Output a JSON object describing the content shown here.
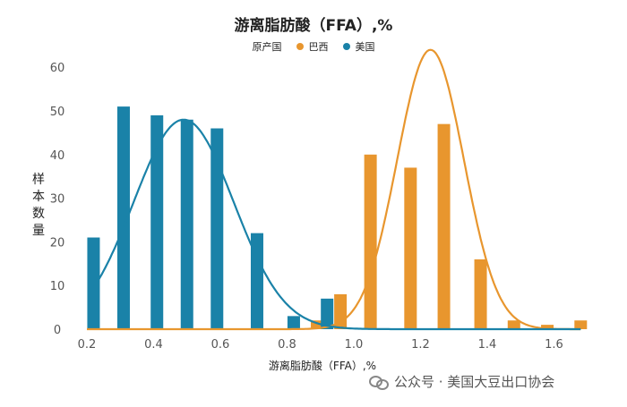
{
  "chart_data": {
    "type": "bar",
    "title": "游离脂肪酸（FFA）,%",
    "xlabel": "游离脂肪酸（FFA）,%",
    "ylabel": "样本数量",
    "legend_title": "原产国",
    "legend_position": "top-center",
    "xlim": [
      0.2,
      1.7
    ],
    "ylim": [
      0,
      65
    ],
    "x_ticks": [
      "0.2",
      "0.4",
      "0.6",
      "0.8",
      "1.0",
      "1.2",
      "1.4",
      "1.6"
    ],
    "y_ticks": [
      "0",
      "10",
      "20",
      "30",
      "40",
      "50",
      "60"
    ],
    "grid": false,
    "series": [
      {
        "name": "巴西",
        "color": "#E8962E",
        "bars": [
          {
            "x": 0.89,
            "y": 2
          },
          {
            "x": 0.96,
            "y": 8
          },
          {
            "x": 1.05,
            "y": 40
          },
          {
            "x": 1.17,
            "y": 37
          },
          {
            "x": 1.27,
            "y": 47
          },
          {
            "x": 1.38,
            "y": 16
          },
          {
            "x": 1.48,
            "y": 2
          },
          {
            "x": 1.58,
            "y": 1
          },
          {
            "x": 1.68,
            "y": 2
          }
        ],
        "curve": {
          "mean": 1.23,
          "sd": 0.1,
          "peak": 64
        }
      },
      {
        "name": "美国",
        "color": "#1A82A8",
        "bars": [
          {
            "x": 0.22,
            "y": 21
          },
          {
            "x": 0.31,
            "y": 51
          },
          {
            "x": 0.41,
            "y": 49
          },
          {
            "x": 0.5,
            "y": 48
          },
          {
            "x": 0.59,
            "y": 46
          },
          {
            "x": 0.71,
            "y": 22
          },
          {
            "x": 0.82,
            "y": 3
          },
          {
            "x": 0.92,
            "y": 7
          }
        ],
        "curve": {
          "mean": 0.49,
          "sd": 0.15,
          "peak": 48
        }
      }
    ]
  },
  "watermark": "公众号 · 美国大豆出口协会"
}
